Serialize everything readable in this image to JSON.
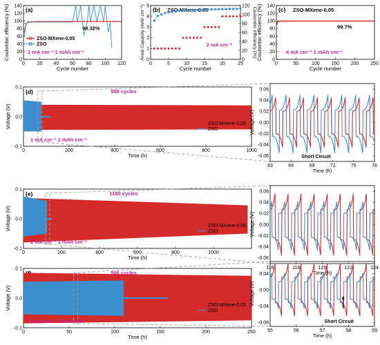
{
  "colors": {
    "red": "#d42a2a",
    "blue": "#3c8fcc",
    "magenta": "#c71fa0",
    "grey": "#9a9a9a"
  },
  "chart_data": [
    {
      "id": "a",
      "panel_label": "(a)",
      "type": "line",
      "xlabel": "Cycle number",
      "ylabel": "Coulombic efficiency (%)",
      "xlim": [
        0,
        120
      ],
      "ylim": [
        0,
        140
      ],
      "xticks": [
        0,
        20,
        40,
        60,
        80,
        100,
        120
      ],
      "yticks": [
        0,
        20,
        40,
        60,
        80,
        100,
        120,
        140
      ],
      "legend": [
        "ZSO-MXene-0.05",
        "ZSO"
      ],
      "annotations": [
        "98.32%",
        "1 mA cm⁻² 1 mAh cm⁻²"
      ],
      "series": [
        {
          "name": "ZSO-MXene-0.05",
          "color": "red",
          "x": [
            1,
            3,
            5,
            10,
            20,
            40,
            60,
            80,
            100,
            120
          ],
          "y": [
            70,
            90,
            96,
            97.5,
            98,
            98.3,
            98.3,
            98.3,
            98.3,
            98.3
          ]
        },
        {
          "name": "ZSO",
          "color": "blue",
          "x": [
            1,
            3,
            5,
            10,
            20,
            30,
            40,
            50,
            60,
            64,
            66,
            70,
            72,
            74,
            78,
            80,
            82,
            86,
            90,
            94,
            98,
            100,
            102,
            104,
            106,
            108
          ],
          "y": [
            60,
            90,
            95,
            97,
            97,
            97,
            97,
            97,
            97,
            140,
            97,
            140,
            97,
            62,
            97,
            140,
            97,
            140,
            97,
            140,
            97,
            140,
            97,
            70,
            97,
            30
          ]
        }
      ]
    },
    {
      "id": "b",
      "panel_label": "(b)",
      "type": "scatter",
      "title": "ZSO-MXene-0.05",
      "xlabel": "Cycle number",
      "ylabel": "Areal Capacity (mAh cm⁻²)",
      "y2label": "Coulombic efficiency (%)",
      "xlim": [
        0,
        25
      ],
      "ylim": [
        0,
        5
      ],
      "y2lim": [
        0,
        120
      ],
      "xticks": [
        0,
        5,
        10,
        15,
        20,
        25
      ],
      "yticks": [
        0,
        1,
        2,
        3,
        4,
        5
      ],
      "y2ticks": [
        0,
        20,
        40,
        60,
        80,
        100,
        120
      ],
      "annotations": [
        "2 mA cm⁻²"
      ],
      "series": [
        {
          "name": "Areal capacity",
          "color": "red",
          "x": [
            1,
            2,
            3,
            4,
            5,
            6,
            7,
            8,
            9,
            10,
            11,
            12,
            13,
            14,
            15,
            16,
            17,
            18,
            19,
            20,
            21,
            22,
            23,
            24,
            25
          ],
          "y": [
            1,
            1,
            1,
            1,
            1,
            1,
            1,
            1,
            2,
            2,
            2,
            2,
            2,
            2,
            3,
            3,
            3,
            3,
            3,
            4,
            4,
            4,
            4,
            4,
            4
          ]
        },
        {
          "name": "Coulombic efficiency",
          "color": "blue",
          "axis": "y2",
          "x": [
            1,
            2,
            3,
            4,
            5,
            6,
            7,
            8,
            9,
            10,
            11,
            12,
            13,
            14,
            15,
            16,
            17,
            18,
            19,
            20,
            21,
            22,
            23,
            24,
            25
          ],
          "y": [
            86,
            97,
            100,
            103,
            105,
            106,
            107,
            108,
            108.5,
            109,
            109.5,
            110,
            110,
            110.5,
            111,
            111,
            111.5,
            111.5,
            112,
            112,
            112,
            112.5,
            112.5,
            112.5,
            113
          ]
        }
      ]
    },
    {
      "id": "c",
      "panel_label": "(c)",
      "type": "line",
      "title": "ZSO-MXene-0.05",
      "xlabel": "Cycle number",
      "ylabel": "Coulombic efficiency (%)",
      "xlim": [
        0,
        250
      ],
      "ylim": [
        0,
        140
      ],
      "xticks": [
        0,
        50,
        100,
        150,
        200,
        250
      ],
      "yticks": [
        0,
        20,
        40,
        60,
        80,
        100,
        120,
        140
      ],
      "annotations": [
        "99.7%",
        "4 mA cm⁻² 1 mAh cm⁻²"
      ],
      "series": [
        {
          "name": "ZSO-MXene-0.05",
          "color": "red",
          "x": [
            1,
            3,
            10,
            50,
            100,
            150,
            200,
            250
          ],
          "y": [
            90,
            98,
            99.5,
            99.7,
            99.7,
            99.7,
            99.7,
            99.7
          ]
        }
      ]
    },
    {
      "id": "d",
      "panel_label": "(d)",
      "type": "area",
      "xlabel": "Time (h)",
      "ylabel": "Voltage (V)",
      "xlim": [
        0,
        1000
      ],
      "ylim": [
        -0.1,
        0.1
      ],
      "xticks": [
        0,
        200,
        400,
        600,
        800,
        1000
      ],
      "yticks": [
        -0.1,
        0.0,
        0.1
      ],
      "legend": [
        "ZSO-MXene-0.05",
        "ZSO"
      ],
      "annotations": [
        "500 cycles",
        "1 mA cm⁻² 1 mAh cm⁻²"
      ],
      "series": [
        {
          "name": "ZSO-MXene-0.05",
          "color": "red",
          "x": [
            0,
            1000
          ],
          "upper": [
            0.04,
            0.038
          ],
          "lower": [
            -0.045,
            -0.043
          ]
        },
        {
          "name": "ZSO",
          "color": "blue",
          "x": [
            0,
            78
          ],
          "upper": [
            0.055,
            0.05
          ],
          "lower": [
            -0.05,
            -0.05
          ],
          "tail": {
            "x": [
              78,
              120
            ],
            "y": [
              0.0,
              0.0
            ]
          }
        }
      ],
      "zoom": {
        "xlim": [
          63,
          78
        ],
        "ylim": [
          -0.07,
          0.07
        ],
        "xticks": [
          63,
          66,
          69,
          72,
          75,
          78
        ],
        "yticks": [
          -0.06,
          -0.04,
          -0.02,
          0.0,
          0.02,
          0.04,
          0.06
        ],
        "annotations": [
          "Short Circuit"
        ],
        "red_amp": 0.045,
        "blue_amp": 0.055,
        "period": 2
      }
    },
    {
      "id": "e",
      "panel_label": "(e)",
      "type": "area",
      "xlabel": "Time (h)",
      "ylabel": "Voltage (V)",
      "xlim": [
        0,
        1200
      ],
      "ylim": [
        -0.1,
        0.1
      ],
      "xticks": [
        0,
        200,
        400,
        600,
        800,
        1000
      ],
      "yticks": [
        -0.1,
        0.0,
        0.1
      ],
      "legend": [
        "ZSO-MXene-0.05",
        "ZSO"
      ],
      "annotations": [
        "1180 cycles",
        "2 mA cm⁻² 1 mAh cm⁻²"
      ],
      "series": [
        {
          "name": "ZSO-MXene-0.05",
          "color": "red",
          "x": [
            0,
            1180
          ],
          "upper": [
            0.07,
            0.045
          ],
          "lower": [
            -0.08,
            -0.05
          ]
        },
        {
          "name": "ZSO",
          "color": "blue",
          "x": [
            0,
            124
          ],
          "upper": [
            0.075,
            0.06
          ],
          "lower": [
            -0.06,
            -0.05
          ],
          "tail": {
            "x": [
              124,
              150
            ],
            "y": [
              0.0,
              0.0
            ]
          }
        }
      ],
      "zoom": {
        "xlim": [
          116,
          124
        ],
        "ylim": [
          -0.07,
          0.07
        ],
        "xticks": [
          116,
          118,
          120,
          122,
          124
        ],
        "yticks": [
          -0.06,
          -0.04,
          -0.02,
          0.0,
          0.02,
          0.04,
          0.06
        ],
        "red_amp": 0.06,
        "blue_amp": 0.05,
        "period": 1
      }
    },
    {
      "id": "f",
      "panel_label": "(f)",
      "type": "area",
      "xlabel": "Time (h)",
      "ylabel": "Voltage (V)",
      "xlim": [
        0,
        250
      ],
      "ylim": [
        -0.1,
        0.1
      ],
      "xticks": [
        0,
        50,
        100,
        150,
        200,
        250
      ],
      "yticks": [
        -0.1,
        0.0,
        0.1
      ],
      "legend": [
        "ZSO-MXene-0.05",
        "ZSO"
      ],
      "annotations": [
        "500 cycles",
        "4 mA cm⁻² 1 mAh cm⁻²"
      ],
      "series": [
        {
          "name": "ZSO-MXene-0.05",
          "color": "red",
          "x": [
            0,
            250
          ],
          "upper": [
            0.085,
            0.075
          ],
          "lower": [
            -0.085,
            -0.075
          ]
        },
        {
          "name": "ZSO",
          "color": "blue",
          "x": [
            0,
            110
          ],
          "upper": [
            0.055,
            0.06
          ],
          "lower": [
            -0.055,
            -0.06
          ],
          "tail": {
            "x": [
              110,
              158
            ],
            "y": [
              0.0,
              0.0
            ]
          }
        }
      ],
      "zoom": {
        "xlim": [
          55,
          59
        ],
        "ylim": [
          -0.09,
          0.07
        ],
        "xticks": [
          55,
          56,
          57,
          58,
          59
        ],
        "yticks": [
          -0.08,
          -0.04,
          0.0,
          0.04
        ],
        "annotations": [
          "Short Circuit"
        ],
        "red_amp": 0.07,
        "blue_amp": 0.05,
        "period": 0.5
      }
    }
  ]
}
